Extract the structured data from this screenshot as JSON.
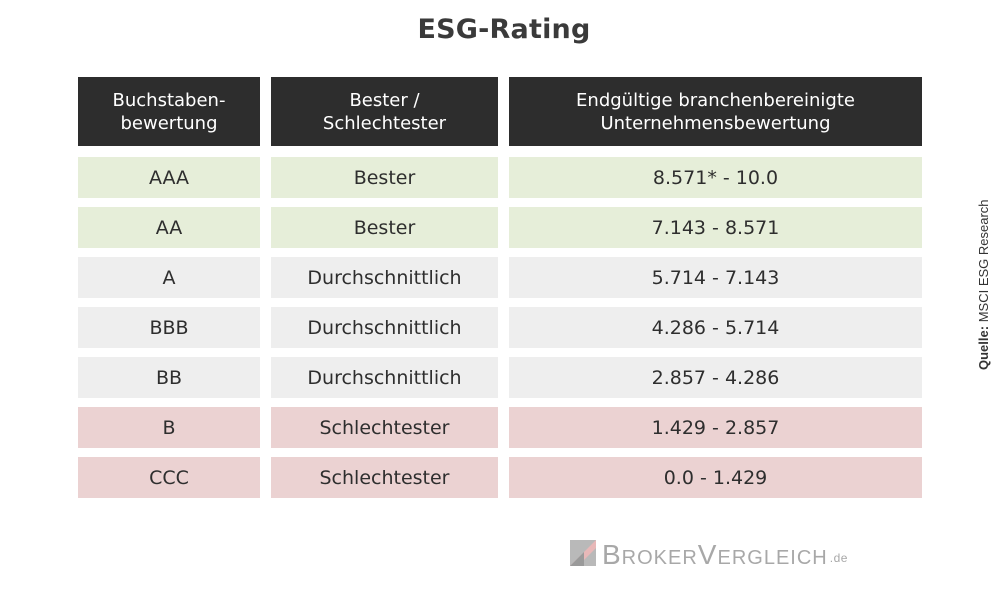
{
  "title": "ESG-Rating",
  "headers": {
    "col1": "Buchstaben-\nbewertung",
    "col2": "Bester /\nSchlechtester",
    "col3": "Endgültige branchenbereinigte\nUnternehmensbewertung"
  },
  "rows": [
    {
      "rating": "AAA",
      "category": "Bester",
      "score": "8.571* - 10.0"
    },
    {
      "rating": "AA",
      "category": "Bester",
      "score": "7.143 - 8.571"
    },
    {
      "rating": "A",
      "category": "Durchschnittlich",
      "score": "5.714 - 7.143"
    },
    {
      "rating": "BBB",
      "category": "Durchschnittlich",
      "score": "4.286 - 5.714"
    },
    {
      "rating": "BB",
      "category": "Durchschnittlich",
      "score": "2.857 - 4.286"
    },
    {
      "rating": "B",
      "category": "Schlechtester",
      "score": "1.429 - 2.857"
    },
    {
      "rating": "CCC",
      "category": "Schlechtester",
      "score": "0.0 - 1.429"
    }
  ],
  "row_colors": {
    "Bester": "#e6eed9",
    "Durchschnittlich": "#eeeeee",
    "Schlechtester": "#ebd2d2"
  },
  "source": {
    "label": "Quelle:",
    "text": "MSCI ESG Research"
  },
  "logo": {
    "text": "BrokerVergleich",
    "tld": ".de",
    "icon": "brokervergleich-logo-mark"
  }
}
